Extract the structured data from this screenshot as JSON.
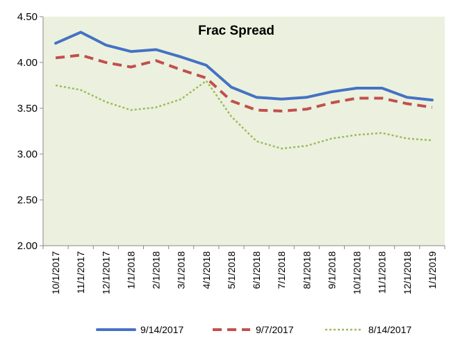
{
  "chart_data": {
    "type": "line",
    "title": "Frac Spread",
    "xlabel": "",
    "ylabel": "",
    "ylim": [
      2.0,
      4.5
    ],
    "yticks": [
      "2.00",
      "2.50",
      "3.00",
      "3.50",
      "4.00",
      "4.50"
    ],
    "ytick_values": [
      2.0,
      2.5,
      3.0,
      3.5,
      4.0,
      4.5
    ],
    "grid": false,
    "legend_position": "bottom",
    "categories": [
      "10/1/2017",
      "11/1/2017",
      "12/1/2017",
      "1/1/2018",
      "2/1/2018",
      "3/1/2018",
      "4/1/2018",
      "5/1/2018",
      "6/1/2018",
      "7/1/2018",
      "8/1/2018",
      "9/1/2018",
      "10/1/2018",
      "11/1/2018",
      "12/1/2018",
      "1/1/2019"
    ],
    "series": [
      {
        "name": "9/14/2017",
        "color": "#4472C4",
        "style": "solid",
        "values": [
          4.21,
          4.33,
          4.19,
          4.12,
          4.14,
          4.06,
          3.97,
          3.73,
          3.62,
          3.6,
          3.62,
          3.68,
          3.72,
          3.72,
          3.62,
          3.59
        ]
      },
      {
        "name": "9/7/2017",
        "color": "#C0504D",
        "style": "dash",
        "values": [
          4.05,
          4.08,
          4.0,
          3.95,
          4.02,
          3.92,
          3.83,
          3.58,
          3.48,
          3.47,
          3.49,
          3.56,
          3.61,
          3.61,
          3.55,
          3.51
        ]
      },
      {
        "name": "8/14/2017",
        "color": "#9BBB59",
        "style": "dot",
        "values": [
          3.75,
          3.7,
          3.57,
          3.48,
          3.51,
          3.6,
          3.8,
          3.41,
          3.14,
          3.06,
          3.09,
          3.17,
          3.21,
          3.23,
          3.17,
          3.15
        ]
      }
    ],
    "plot_background": "#EBF1DE"
  }
}
